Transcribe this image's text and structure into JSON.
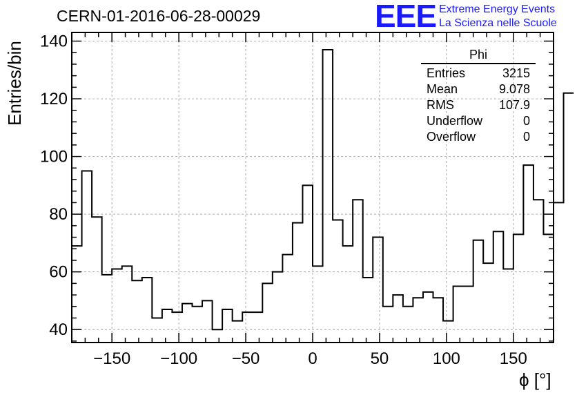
{
  "header": {
    "run_title": "CERN-01-2016-06-28-00029",
    "logo_text": "EEE",
    "logo_line1": "Extreme Energy Events",
    "logo_line2": "La Scienza nelle Scuole",
    "logo_color": "#1a1aff"
  },
  "stats_box": {
    "title": "Phi",
    "rows": [
      {
        "label": "Entries",
        "value": "3215"
      },
      {
        "label": "Mean",
        "value": "9.078"
      },
      {
        "label": "RMS",
        "value": "107.9"
      },
      {
        "label": "Underflow",
        "value": "0"
      },
      {
        "label": "Overflow",
        "value": "0"
      }
    ]
  },
  "chart_data": {
    "type": "bar",
    "style": "step-histogram",
    "xlabel": "ϕ [°]",
    "ylabel": "Entries/bin",
    "xlim": [
      -180,
      180
    ],
    "ylim": [
      35.5,
      143
    ],
    "grid": true,
    "bin_width": 7.5,
    "x_ticks": [
      -150,
      -100,
      -50,
      0,
      50,
      100,
      150
    ],
    "y_ticks": [
      40,
      60,
      80,
      100,
      120,
      140
    ],
    "values": [
      69,
      95,
      79,
      59,
      61,
      62,
      57,
      58,
      44,
      47,
      46,
      49,
      48,
      50,
      40,
      47,
      43,
      46,
      46,
      56,
      60,
      66,
      77,
      90,
      62,
      137,
      78,
      69,
      85,
      58,
      72,
      48,
      52,
      48,
      51,
      53,
      51,
      43,
      55,
      55,
      71,
      63,
      74,
      61,
      73,
      97,
      85,
      73,
      84,
      122
    ]
  }
}
